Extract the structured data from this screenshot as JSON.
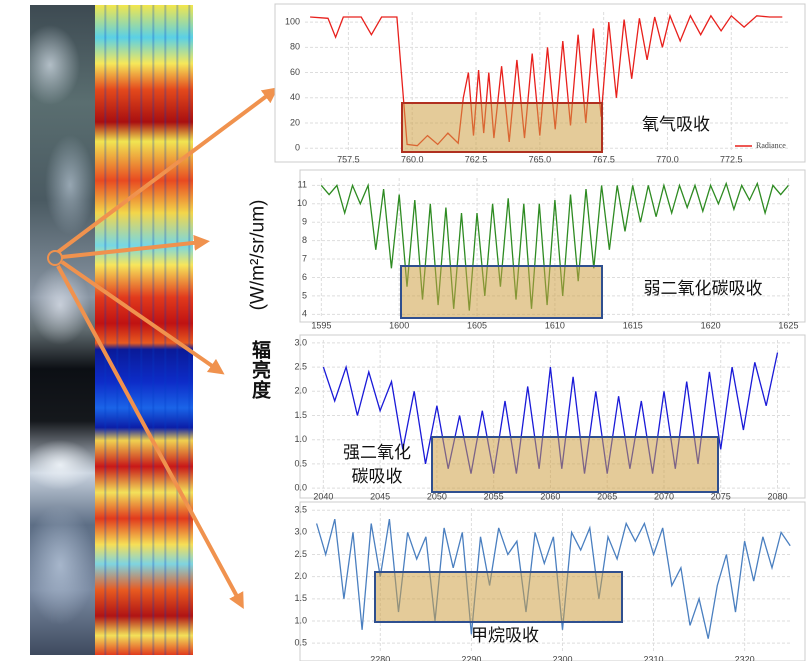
{
  "labels": {
    "unit": "(W/m²/sr/um)",
    "quantity": "辐亮度"
  },
  "chart_data": [
    {
      "type": "line",
      "annotation": [
        "氧气吸收"
      ],
      "x": [
        756.0,
        756.7,
        757.0,
        757.3,
        758.0,
        758.4,
        758.8,
        759.4,
        759.8,
        760.2,
        760.6,
        761.0,
        761.4,
        761.8,
        762.0,
        762.2,
        762.4,
        762.6,
        762.8,
        763.0,
        763.2,
        763.5,
        763.8,
        764.1,
        764.4,
        764.7,
        765.0,
        765.3,
        765.6,
        765.9,
        766.2,
        766.5,
        766.8,
        767.1,
        767.4,
        767.7,
        768.0,
        768.3,
        768.6,
        768.9,
        769.2,
        769.5,
        769.8,
        770.1,
        770.5,
        770.9,
        771.3,
        771.7,
        772.1,
        772.5,
        773.0,
        773.5,
        774.0,
        774.5
      ],
      "series": [
        {
          "name": "Radiance",
          "color": "#e8201c",
          "values": [
            104,
            103,
            88,
            104,
            104,
            90,
            104,
            104,
            3,
            2,
            10,
            3,
            12,
            4,
            40,
            60,
            10,
            62,
            12,
            60,
            8,
            65,
            5,
            70,
            8,
            75,
            10,
            80,
            15,
            85,
            18,
            90,
            20,
            95,
            25,
            100,
            40,
            102,
            55,
            103,
            70,
            104,
            80,
            105,
            85,
            105,
            90,
            105,
            93,
            105,
            96,
            105,
            104,
            104
          ]
        }
      ],
      "xlim": [
        755.8,
        774.8
      ],
      "ylim": [
        -3,
        108
      ],
      "xticks": [
        757.5,
        {
          "value": 760,
          "label": "760.0"
        },
        762.5,
        {
          "value": 765,
          "label": "765.0"
        },
        767.5,
        {
          "value": 770,
          "label": "770.0"
        },
        772.5
      ],
      "yticks": [
        0,
        20,
        40,
        60,
        80,
        100
      ],
      "grid": true,
      "legend": "lower right"
    },
    {
      "type": "line",
      "annotation": [
        "弱二氧化碳吸收"
      ],
      "x": [
        1595,
        1595.5,
        1596,
        1596.5,
        1597,
        1597.5,
        1598,
        1598.5,
        1599,
        1599.5,
        1600,
        1600.5,
        1601,
        1601.5,
        1602,
        1602.5,
        1603,
        1603.5,
        1604,
        1604.5,
        1605,
        1605.5,
        1606,
        1606.5,
        1607,
        1607.5,
        1608,
        1608.5,
        1609,
        1609.5,
        1610,
        1610.5,
        1611,
        1611.5,
        1612,
        1612.5,
        1613,
        1613.5,
        1614,
        1614.5,
        1615,
        1615.5,
        1616,
        1616.5,
        1617,
        1617.5,
        1618,
        1618.5,
        1619,
        1619.5,
        1620,
        1620.5,
        1621,
        1621.5,
        1622,
        1622.5,
        1623,
        1623.5,
        1624,
        1624.5,
        1625
      ],
      "series": [
        {
          "color": "#2e8b22",
          "values": [
            11,
            10.5,
            11,
            9.5,
            11,
            10,
            11,
            7.5,
            10.8,
            6.5,
            10.5,
            5.5,
            10.2,
            4.8,
            10,
            4.5,
            9.8,
            4.3,
            9.5,
            4.2,
            9.5,
            5,
            10,
            5.5,
            10.3,
            4.8,
            10,
            4.3,
            10,
            4.5,
            10.2,
            5,
            10.5,
            5.8,
            10.8,
            6.5,
            11,
            7.5,
            11,
            8.5,
            11,
            9,
            11,
            9.3,
            11,
            9.5,
            11,
            9.8,
            11,
            9.6,
            11,
            10,
            11.1,
            9.7,
            11,
            10.2,
            11.1,
            9.5,
            11,
            10.5,
            11
          ]
        }
      ],
      "xlim": [
        1594.4,
        1625.1
      ],
      "ylim": [
        3.8,
        11.4
      ],
      "xticks": [
        1595,
        1600,
        1605,
        1610,
        1615,
        1620,
        1625
      ],
      "yticks": [
        4,
        5,
        6,
        7,
        8,
        9,
        10,
        11
      ],
      "grid": true
    },
    {
      "type": "line",
      "annotation": [
        "强二氧化",
        "碳吸收"
      ],
      "x": [
        2040,
        2041,
        2042,
        2043,
        2044,
        2045,
        2046,
        2047,
        2048,
        2049,
        2050,
        2051,
        2052,
        2053,
        2054,
        2055,
        2056,
        2057,
        2058,
        2059,
        2060,
        2061,
        2062,
        2063,
        2064,
        2065,
        2066,
        2067,
        2068,
        2069,
        2070,
        2071,
        2072,
        2073,
        2074,
        2075,
        2076,
        2077,
        2078,
        2079,
        2080
      ],
      "series": [
        {
          "color": "#1a1ad8",
          "values": [
            2.5,
            1.8,
            2.5,
            1.5,
            2.4,
            1.6,
            2.2,
            0.8,
            2.0,
            0.5,
            1.7,
            0.4,
            1.5,
            0.3,
            1.6,
            0.3,
            1.8,
            0.3,
            2.1,
            0.4,
            2.5,
            0.4,
            2.3,
            0.3,
            2.0,
            0.3,
            1.9,
            0.4,
            1.8,
            0.3,
            2.0,
            0.4,
            2.2,
            0.5,
            2.4,
            0.8,
            2.5,
            1.2,
            2.6,
            1.7,
            2.8
          ]
        }
      ],
      "xlim": [
        2039,
        2081.1
      ],
      "ylim": [
        -0.08,
        3.06
      ],
      "xticks": [
        2040,
        2045,
        2050,
        2055,
        2060,
        2065,
        2070,
        2075,
        2080
      ],
      "yticks": [
        {
          "value": 0,
          "label": "0.0"
        },
        0.5,
        {
          "value": 1,
          "label": "1.0"
        },
        1.5,
        {
          "value": 2,
          "label": "2.0"
        },
        2.5,
        {
          "value": 3,
          "label": "3.0"
        }
      ],
      "grid": true
    },
    {
      "type": "line",
      "annotation": [
        "甲烷吸收"
      ],
      "x": [
        2273,
        2274,
        2275,
        2276,
        2277,
        2278,
        2279,
        2280,
        2281,
        2282,
        2283,
        2284,
        2285,
        2286,
        2287,
        2288,
        2289,
        2290,
        2291,
        2292,
        2293,
        2294,
        2295,
        2296,
        2297,
        2298,
        2299,
        2300,
        2301,
        2302,
        2303,
        2304,
        2305,
        2306,
        2307,
        2308,
        2309,
        2310,
        2311,
        2312,
        2313,
        2314,
        2315,
        2316,
        2317,
        2318,
        2319,
        2320,
        2321,
        2322,
        2323,
        2324,
        2325
      ],
      "series": [
        {
          "color": "#4a7fc0",
          "values": [
            3.2,
            2.5,
            3.3,
            1.5,
            3.0,
            0.8,
            3.2,
            2.0,
            3.3,
            1.2,
            3.0,
            2.4,
            2.9,
            1.0,
            3.1,
            2.2,
            3.0,
            0.7,
            2.9,
            1.8,
            3.1,
            2.5,
            2.8,
            1.2,
            3.0,
            2.3,
            2.9,
            0.8,
            3.0,
            2.6,
            3.1,
            1.5,
            2.9,
            2.4,
            3.2,
            2.8,
            3.2,
            2.5,
            3.1,
            1.8,
            2.2,
            0.9,
            1.5,
            0.6,
            1.8,
            2.5,
            1.2,
            2.8,
            1.9,
            2.9,
            2.2,
            3.0,
            2.7
          ]
        }
      ],
      "xlim": [
        2272.5,
        2325.2
      ],
      "ylim": [
        0.3,
        3.55
      ],
      "xticks": [
        2280,
        2290,
        2300,
        2310,
        2320
      ],
      "yticks": [
        0.5,
        {
          "value": 1,
          "label": "1.0"
        },
        1.5,
        {
          "value": 2,
          "label": "2.0"
        },
        2.5,
        {
          "value": 3,
          "label": "3.0"
        },
        3.5
      ],
      "grid": true
    }
  ]
}
